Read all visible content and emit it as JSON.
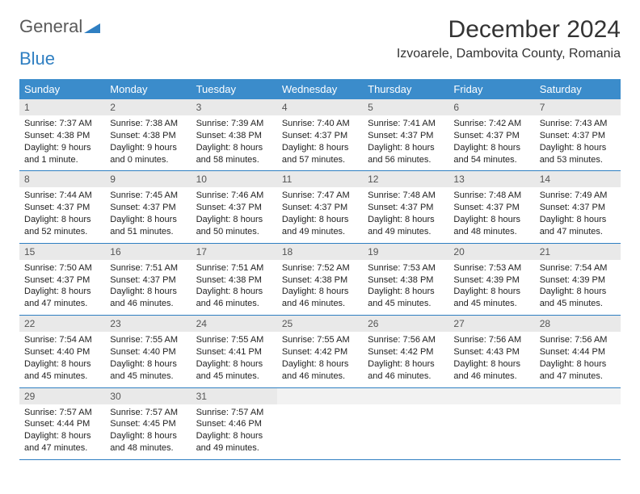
{
  "brand": {
    "name1": "General",
    "name2": "Blue"
  },
  "title": "December 2024",
  "location": "Izvoarele, Dambovita County, Romania",
  "colors": {
    "header_bg": "#3b8ccb",
    "border": "#2f7fc2",
    "daynum_bg": "#e9e9e9",
    "text": "#333333"
  },
  "weekdays": [
    "Sunday",
    "Monday",
    "Tuesday",
    "Wednesday",
    "Thursday",
    "Friday",
    "Saturday"
  ],
  "weeks": [
    [
      {
        "n": "1",
        "sr": "7:37 AM",
        "ss": "4:38 PM",
        "dl": "9 hours and 1 minute."
      },
      {
        "n": "2",
        "sr": "7:38 AM",
        "ss": "4:38 PM",
        "dl": "9 hours and 0 minutes."
      },
      {
        "n": "3",
        "sr": "7:39 AM",
        "ss": "4:38 PM",
        "dl": "8 hours and 58 minutes."
      },
      {
        "n": "4",
        "sr": "7:40 AM",
        "ss": "4:37 PM",
        "dl": "8 hours and 57 minutes."
      },
      {
        "n": "5",
        "sr": "7:41 AM",
        "ss": "4:37 PM",
        "dl": "8 hours and 56 minutes."
      },
      {
        "n": "6",
        "sr": "7:42 AM",
        "ss": "4:37 PM",
        "dl": "8 hours and 54 minutes."
      },
      {
        "n": "7",
        "sr": "7:43 AM",
        "ss": "4:37 PM",
        "dl": "8 hours and 53 minutes."
      }
    ],
    [
      {
        "n": "8",
        "sr": "7:44 AM",
        "ss": "4:37 PM",
        "dl": "8 hours and 52 minutes."
      },
      {
        "n": "9",
        "sr": "7:45 AM",
        "ss": "4:37 PM",
        "dl": "8 hours and 51 minutes."
      },
      {
        "n": "10",
        "sr": "7:46 AM",
        "ss": "4:37 PM",
        "dl": "8 hours and 50 minutes."
      },
      {
        "n": "11",
        "sr": "7:47 AM",
        "ss": "4:37 PM",
        "dl": "8 hours and 49 minutes."
      },
      {
        "n": "12",
        "sr": "7:48 AM",
        "ss": "4:37 PM",
        "dl": "8 hours and 49 minutes."
      },
      {
        "n": "13",
        "sr": "7:48 AM",
        "ss": "4:37 PM",
        "dl": "8 hours and 48 minutes."
      },
      {
        "n": "14",
        "sr": "7:49 AM",
        "ss": "4:37 PM",
        "dl": "8 hours and 47 minutes."
      }
    ],
    [
      {
        "n": "15",
        "sr": "7:50 AM",
        "ss": "4:37 PM",
        "dl": "8 hours and 47 minutes."
      },
      {
        "n": "16",
        "sr": "7:51 AM",
        "ss": "4:37 PM",
        "dl": "8 hours and 46 minutes."
      },
      {
        "n": "17",
        "sr": "7:51 AM",
        "ss": "4:38 PM",
        "dl": "8 hours and 46 minutes."
      },
      {
        "n": "18",
        "sr": "7:52 AM",
        "ss": "4:38 PM",
        "dl": "8 hours and 46 minutes."
      },
      {
        "n": "19",
        "sr": "7:53 AM",
        "ss": "4:38 PM",
        "dl": "8 hours and 45 minutes."
      },
      {
        "n": "20",
        "sr": "7:53 AM",
        "ss": "4:39 PM",
        "dl": "8 hours and 45 minutes."
      },
      {
        "n": "21",
        "sr": "7:54 AM",
        "ss": "4:39 PM",
        "dl": "8 hours and 45 minutes."
      }
    ],
    [
      {
        "n": "22",
        "sr": "7:54 AM",
        "ss": "4:40 PM",
        "dl": "8 hours and 45 minutes."
      },
      {
        "n": "23",
        "sr": "7:55 AM",
        "ss": "4:40 PM",
        "dl": "8 hours and 45 minutes."
      },
      {
        "n": "24",
        "sr": "7:55 AM",
        "ss": "4:41 PM",
        "dl": "8 hours and 45 minutes."
      },
      {
        "n": "25",
        "sr": "7:55 AM",
        "ss": "4:42 PM",
        "dl": "8 hours and 46 minutes."
      },
      {
        "n": "26",
        "sr": "7:56 AM",
        "ss": "4:42 PM",
        "dl": "8 hours and 46 minutes."
      },
      {
        "n": "27",
        "sr": "7:56 AM",
        "ss": "4:43 PM",
        "dl": "8 hours and 46 minutes."
      },
      {
        "n": "28",
        "sr": "7:56 AM",
        "ss": "4:44 PM",
        "dl": "8 hours and 47 minutes."
      }
    ],
    [
      {
        "n": "29",
        "sr": "7:57 AM",
        "ss": "4:44 PM",
        "dl": "8 hours and 47 minutes."
      },
      {
        "n": "30",
        "sr": "7:57 AM",
        "ss": "4:45 PM",
        "dl": "8 hours and 48 minutes."
      },
      {
        "n": "31",
        "sr": "7:57 AM",
        "ss": "4:46 PM",
        "dl": "8 hours and 49 minutes."
      },
      null,
      null,
      null,
      null
    ]
  ],
  "labels": {
    "sunrise": "Sunrise: ",
    "sunset": "Sunset: ",
    "daylight": "Daylight: "
  }
}
